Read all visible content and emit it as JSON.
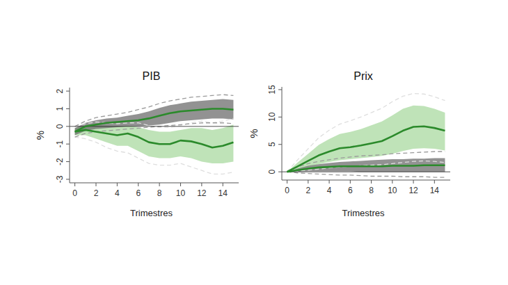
{
  "chart_data": [
    {
      "type": "line",
      "title": "PIB",
      "x_label": "Trimestres",
      "y_label": "%",
      "x": [
        0,
        1,
        2,
        3,
        4,
        5,
        6,
        7,
        8,
        9,
        10,
        11,
        12,
        13,
        14,
        15
      ],
      "xlim": [
        -0.5,
        15.5
      ],
      "xticks": [
        0,
        2,
        4,
        6,
        8,
        10,
        12,
        14
      ],
      "ylim": [
        -3.2,
        2.2
      ],
      "yticks": [
        -3,
        -2,
        -1,
        0,
        1,
        2
      ],
      "hline": 0,
      "series": [
        {
          "color": "#2b8a2b",
          "values": [
            -0.3,
            0,
            0.1,
            0.2,
            0.25,
            0.3,
            0.35,
            0.45,
            0.6,
            0.75,
            0.85,
            0.9,
            0.95,
            1.0,
            1.0,
            0.95
          ],
          "inner_lower": [
            -0.5,
            -0.25,
            -0.15,
            -0.1,
            -0.05,
            0,
            0,
            0.05,
            0.1,
            0.2,
            0.3,
            0.35,
            0.4,
            0.45,
            0.45,
            0.4
          ],
          "inner_upper": [
            -0.1,
            0.2,
            0.35,
            0.45,
            0.5,
            0.6,
            0.7,
            0.85,
            1.05,
            1.2,
            1.3,
            1.4,
            1.45,
            1.5,
            1.55,
            1.5
          ],
          "outer_lower": [
            -0.6,
            -0.4,
            -0.3,
            -0.25,
            -0.2,
            -0.15,
            -0.1,
            -0.05,
            0,
            0.05,
            0.1,
            0.15,
            0.2,
            0.2,
            0.2,
            0.15
          ],
          "outer_upper": [
            0,
            0.3,
            0.5,
            0.6,
            0.7,
            0.8,
            0.95,
            1.1,
            1.3,
            1.45,
            1.55,
            1.65,
            1.7,
            1.75,
            1.8,
            1.75
          ]
        },
        {
          "color": "#2b8a2b",
          "values": [
            -0.3,
            -0.2,
            -0.3,
            -0.4,
            -0.5,
            -0.4,
            -0.6,
            -0.9,
            -1.0,
            -1.0,
            -0.8,
            -0.85,
            -1.0,
            -1.2,
            -1.1,
            -0.9
          ],
          "inner_lower": [
            -0.5,
            -0.5,
            -0.7,
            -0.9,
            -1.1,
            -1.1,
            -1.4,
            -1.7,
            -1.8,
            -1.8,
            -1.7,
            -1.8,
            -2.0,
            -2.1,
            -2.1,
            -2.0
          ],
          "inner_upper": [
            -0.1,
            0.05,
            0.1,
            0.05,
            0,
            0.05,
            -0.05,
            -0.2,
            -0.3,
            -0.3,
            -0.2,
            -0.1,
            -0.1,
            -0.2,
            -0.1,
            0.1
          ],
          "outer_lower": [
            -0.6,
            -0.7,
            -0.9,
            -1.2,
            -1.4,
            -1.5,
            -1.8,
            -2.1,
            -2.2,
            -2.2,
            -2.1,
            -2.3,
            -2.5,
            -2.7,
            -2.7,
            -2.6
          ],
          "outer_upper": [
            0,
            0.15,
            0.25,
            0.2,
            0.15,
            0.2,
            0.2,
            0.05,
            -0.05,
            -0.05,
            0.05,
            0.2,
            0.3,
            0.2,
            0.3,
            0.45
          ]
        }
      ]
    },
    {
      "type": "line",
      "title": "Prix",
      "x_label": "Trimestres",
      "y_label": "%",
      "x": [
        0,
        1,
        2,
        3,
        4,
        5,
        6,
        7,
        8,
        9,
        10,
        11,
        12,
        13,
        14,
        15
      ],
      "xlim": [
        -0.5,
        15.5
      ],
      "xticks": [
        0,
        2,
        4,
        6,
        8,
        10,
        12,
        14
      ],
      "ylim": [
        -1.5,
        15.5
      ],
      "yticks": [
        0,
        5,
        10,
        15
      ],
      "hline": 0,
      "series": [
        {
          "color": "#2b8a2b",
          "values": [
            0,
            0.3,
            0.6,
            0.8,
            0.9,
            1.0,
            1.0,
            1.0,
            1.0,
            1.0,
            1.1,
            1.1,
            1.1,
            1.2,
            1.2,
            1.2
          ],
          "inner_lower": [
            0,
            0,
            0.1,
            0.1,
            0.1,
            0.1,
            0.1,
            0,
            0,
            0,
            0,
            0,
            0,
            0,
            0,
            0
          ],
          "inner_upper": [
            0,
            0.6,
            1.1,
            1.4,
            1.6,
            1.8,
            1.9,
            2.0,
            2.1,
            2.2,
            2.3,
            2.3,
            2.4,
            2.4,
            2.5,
            2.5
          ],
          "outer_lower": [
            0,
            -0.2,
            -0.3,
            -0.4,
            -0.5,
            -0.6,
            -0.6,
            -0.7,
            -0.8,
            -0.8,
            -0.8,
            -0.9,
            -0.9,
            -0.9,
            -1.0,
            -1.0
          ],
          "outer_upper": [
            0,
            0.9,
            1.5,
            1.9,
            2.2,
            2.5,
            2.7,
            2.9,
            3.0,
            3.1,
            3.3,
            3.4,
            3.5,
            3.6,
            3.7,
            3.7
          ]
        },
        {
          "color": "#2b8a2b",
          "values": [
            0,
            1.0,
            2.0,
            3.0,
            3.7,
            4.3,
            4.5,
            4.8,
            5.2,
            5.6,
            6.5,
            7.5,
            8.2,
            8.3,
            8.0,
            7.5
          ],
          "inner_lower": [
            0,
            0.4,
            0.9,
            1.4,
            1.8,
            2.1,
            2.3,
            2.5,
            2.7,
            2.9,
            3.3,
            3.8,
            4.2,
            4.3,
            4.2,
            3.9
          ],
          "inner_upper": [
            0,
            1.7,
            3.3,
            4.9,
            6.0,
            6.9,
            7.3,
            7.8,
            8.5,
            9.2,
            10.3,
            11.5,
            12.1,
            12.0,
            11.5,
            10.8
          ],
          "outer_lower": [
            0,
            0.1,
            0.3,
            0.5,
            0.7,
            0.9,
            1.0,
            1.1,
            1.2,
            1.3,
            1.5,
            1.7,
            1.9,
            2.0,
            1.9,
            1.7
          ],
          "outer_upper": [
            0,
            2.2,
            4.2,
            6.2,
            7.6,
            8.7,
            9.3,
            10.0,
            10.8,
            11.6,
            12.8,
            13.8,
            14.3,
            14.2,
            13.7,
            13.0
          ]
        }
      ]
    }
  ]
}
